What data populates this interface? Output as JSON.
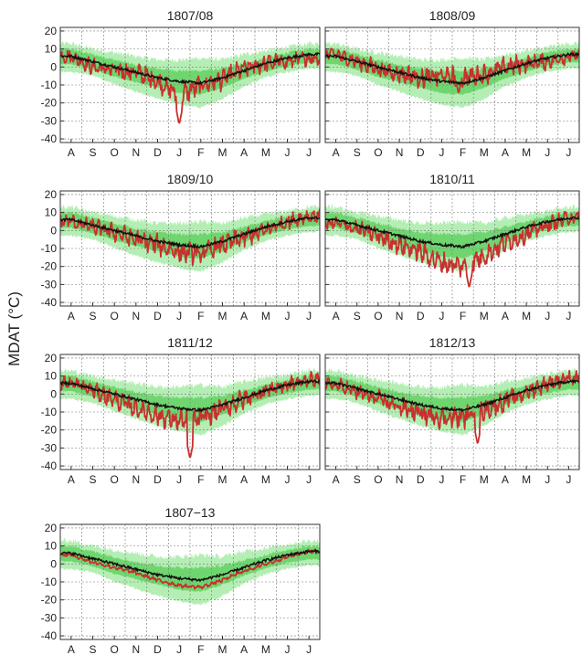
{
  "figure": {
    "ylabel": "MDAT (°C)"
  },
  "chart_data": {
    "type": "line",
    "ylabel": "MDAT (°C)",
    "ylim": [
      -42,
      22
    ],
    "y_ticks": [
      20,
      10,
      0,
      -10,
      -20,
      -30,
      -40
    ],
    "x_ticks": [
      "A",
      "S",
      "O",
      "N",
      "D",
      "J",
      "F",
      "M",
      "A",
      "M",
      "J",
      "J"
    ],
    "grid": true,
    "band_colors": {
      "outer": "#b4eeb4",
      "inner": "#6fd66f",
      "mean": "#111111",
      "observed": "#c8302f"
    },
    "climatology": {
      "months": [
        "A",
        "S",
        "O",
        "N",
        "D",
        "J",
        "F",
        "M",
        "A",
        "M",
        "J",
        "J"
      ],
      "mean": [
        6,
        3,
        0,
        -3,
        -6,
        -8,
        -9,
        -6,
        -2,
        2,
        5,
        7
      ],
      "inner_band": [
        [
          2,
          10
        ],
        [
          -1,
          7
        ],
        [
          -5,
          4
        ],
        [
          -8,
          1
        ],
        [
          -11,
          -1
        ],
        [
          -14,
          -2
        ],
        [
          -15,
          -2
        ],
        [
          -11,
          -1
        ],
        [
          -6,
          2
        ],
        [
          -2,
          5
        ],
        [
          1,
          8
        ],
        [
          3,
          10
        ]
      ],
      "outer_band": [
        [
          -2,
          13
        ],
        [
          -4,
          10
        ],
        [
          -9,
          8
        ],
        [
          -13,
          6
        ],
        [
          -17,
          4
        ],
        [
          -20,
          4
        ],
        [
          -22,
          5
        ],
        [
          -17,
          4
        ],
        [
          -10,
          7
        ],
        [
          -5,
          9
        ],
        [
          -2,
          11
        ],
        [
          0,
          13
        ]
      ]
    },
    "panels": [
      {
        "title": "1807/08",
        "observed": [
          6,
          0,
          -2,
          -3,
          -8,
          -16,
          -10,
          -7,
          -1,
          2,
          3,
          5
        ],
        "extremes": [
          {
            "month": 5.5,
            "value": -32
          }
        ]
      },
      {
        "title": "1808/09",
        "observed": [
          7,
          3,
          -1,
          -4,
          -6,
          -5,
          -6,
          -4,
          0,
          2,
          3,
          6
        ],
        "extremes": [
          {
            "month": 6.3,
            "value": -15
          }
        ]
      },
      {
        "title": "1809/10",
        "observed": [
          5,
          2,
          -1,
          -5,
          -8,
          -12,
          -13,
          -8,
          -4,
          0,
          5,
          8
        ],
        "extremes": [
          {
            "month": 6.5,
            "value": -16
          }
        ]
      },
      {
        "title": "1810/11",
        "observed": [
          4,
          1,
          -3,
          -8,
          -12,
          -18,
          -20,
          -14,
          -7,
          -2,
          3,
          7
        ],
        "extremes": [
          {
            "month": 6.8,
            "value": -32
          }
        ]
      },
      {
        "title": "1811/12",
        "observed": [
          6,
          2,
          -3,
          -8,
          -12,
          -15,
          -14,
          -8,
          -3,
          2,
          5,
          8
        ],
        "extremes": [
          {
            "month": 6.0,
            "value": -36
          }
        ]
      },
      {
        "title": "1812/13",
        "observed": [
          5,
          1,
          -3,
          -7,
          -11,
          -13,
          -13,
          -9,
          -4,
          1,
          6,
          9
        ],
        "extremes": [
          {
            "month": 7.2,
            "value": -28
          }
        ]
      },
      {
        "title": "1807−13",
        "observed": [
          5,
          1,
          -2,
          -5,
          -9,
          -12,
          -13,
          -9,
          -4,
          0,
          4,
          7
        ],
        "extremes": []
      }
    ]
  }
}
